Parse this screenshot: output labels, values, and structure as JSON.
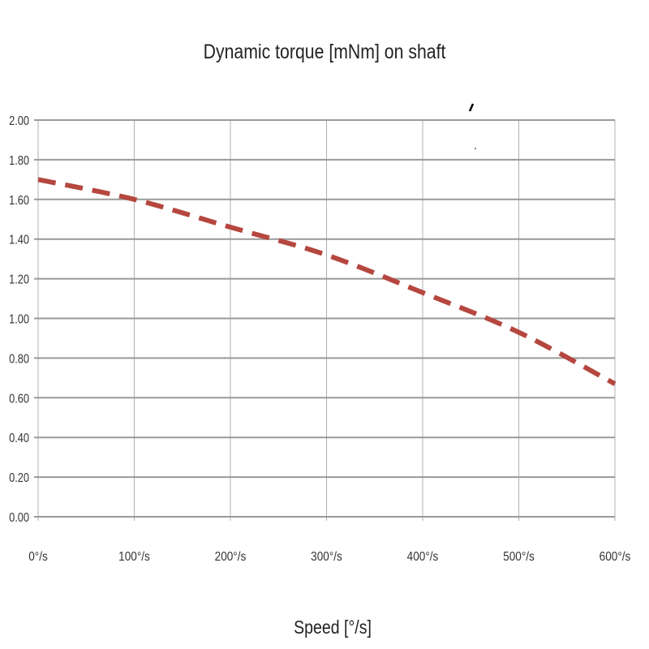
{
  "chart_data": {
    "type": "line",
    "title": "Dynamic torque [mNm]  on shaft",
    "xlabel": "Speed  [°/s]",
    "ylabel": "",
    "x": [
      0,
      100,
      200,
      300,
      400,
      500,
      600
    ],
    "xtick_labels": [
      "0°/s",
      "100°/s",
      "200°/s",
      "300°/s",
      "400°/s",
      "500°/s",
      "600°/s"
    ],
    "ytick_labels": [
      "0.00",
      "0.20",
      "0.40",
      "0.60",
      "0.80",
      "1.00",
      "1.20",
      "1.40",
      "1.60",
      "1.80",
      "2.00"
    ],
    "xlim": [
      0,
      600
    ],
    "ylim": [
      0,
      2.0
    ],
    "grid": true,
    "series": [
      {
        "values": [
          1.7,
          1.6,
          1.46,
          1.32,
          1.13,
          0.93,
          0.67
        ],
        "color": "#b5473f",
        "style": "dashed"
      }
    ]
  }
}
